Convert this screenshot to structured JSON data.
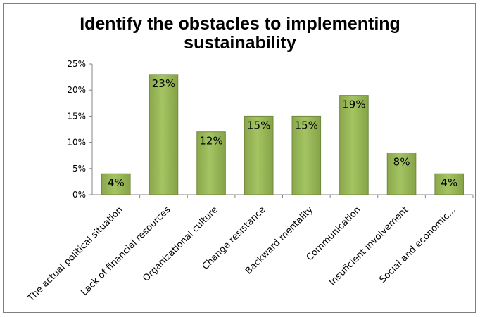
{
  "chart_data": {
    "type": "bar",
    "title": "Identify the obstacles to implementing\nsustainability",
    "categories": [
      "The actual political situation",
      "Lack of financial resources",
      "Organizational culture",
      "Change resistance",
      "Backward mentality",
      "Communication",
      "Insuficient involvement",
      "Social and economic…"
    ],
    "values": [
      0.04,
      0.23,
      0.12,
      0.15,
      0.15,
      0.19,
      0.08,
      0.04
    ],
    "data_labels": [
      "4%",
      "23%",
      "12%",
      "15%",
      "15%",
      "19%",
      "8%",
      "4%"
    ],
    "yticks": [
      "0%",
      "5%",
      "10%",
      "15%",
      "20%",
      "25%"
    ],
    "ylim": [
      0,
      0.25
    ],
    "grid": false,
    "legend": "none",
    "bar_color": "#9bbb59",
    "bar_edge_color": "#71893f"
  }
}
